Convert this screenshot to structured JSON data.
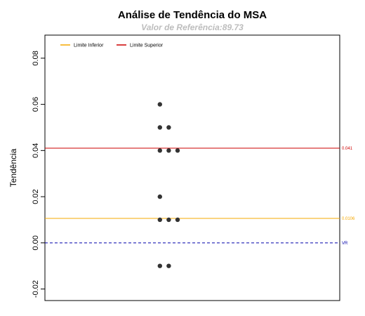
{
  "chart_data": {
    "type": "scatter",
    "title": "Análise de Tendência do MSA",
    "subtitle": "Valor de Referência:89.73",
    "xlabel": "",
    "ylabel": "Tendência",
    "ylim": [
      -0.025,
      0.09
    ],
    "yticks": [
      -0.02,
      0.0,
      0.02,
      0.04,
      0.06,
      0.08
    ],
    "ytick_labels": [
      "-0.02",
      "0.00",
      "0.02",
      "0.04",
      "0.06",
      "0.08"
    ],
    "xlim": [
      0,
      10
    ],
    "grid": false,
    "legend_position": "top-left",
    "points": [
      {
        "x": 3.9,
        "y": 0.06
      },
      {
        "x": 3.9,
        "y": 0.05
      },
      {
        "x": 4.2,
        "y": 0.05
      },
      {
        "x": 3.9,
        "y": 0.04
      },
      {
        "x": 4.2,
        "y": 0.04
      },
      {
        "x": 4.5,
        "y": 0.04
      },
      {
        "x": 3.9,
        "y": 0.02
      },
      {
        "x": 3.9,
        "y": 0.01
      },
      {
        "x": 4.2,
        "y": 0.01
      },
      {
        "x": 4.5,
        "y": 0.01
      },
      {
        "x": 3.9,
        "y": -0.01
      },
      {
        "x": 4.2,
        "y": -0.01
      }
    ],
    "point_color": "#333333",
    "reference_lines": [
      {
        "name": "Limite Inferior",
        "value": 0.0106,
        "label": "0.0106",
        "color": "#f5a800",
        "dash": "solid"
      },
      {
        "name": "Limite Superior",
        "value": 0.041,
        "label": "0.041",
        "color": "#cc0000",
        "dash": "solid"
      },
      {
        "name": "VR",
        "value": 0.0,
        "label": "VR",
        "color": "#0000aa",
        "dash": "dashed"
      }
    ],
    "legend": [
      {
        "label": "Limite Inferior",
        "color": "#f5a800"
      },
      {
        "label": "Limite Superior",
        "color": "#cc0000"
      }
    ]
  }
}
